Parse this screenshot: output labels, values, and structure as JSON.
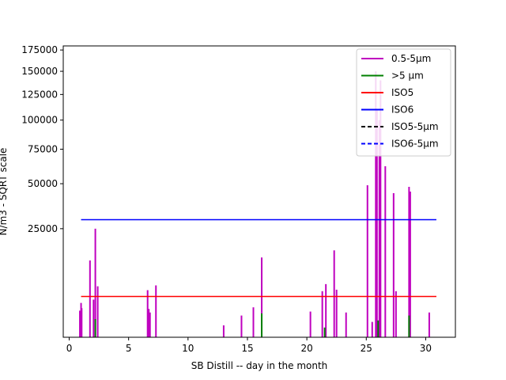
{
  "chart_data": {
    "type": "line",
    "xlabel": "SB Distill -- day in the month",
    "ylabel": "N/m3 - SQRT scale",
    "xlim": [
      -0.5,
      32.5
    ],
    "ylim": [
      0,
      180000
    ],
    "y_scale": "sqrt",
    "grid": false,
    "legend_placement": "top-right",
    "x_ticks": [
      0,
      5,
      10,
      15,
      20,
      25,
      30
    ],
    "x_tick_labels": [
      "0",
      "5",
      "10",
      "15",
      "20",
      "25",
      "30"
    ],
    "y_ticks": [
      25000,
      50000,
      75000,
      100000,
      125000,
      150000,
      175000
    ],
    "y_tick_labels": [
      "25000",
      "50000",
      "75000",
      "100000",
      "125000",
      "150000",
      "175000"
    ],
    "colors": {
      "particles_small": "#bf00bf",
      "particles_large": "#008000",
      "iso5": "#ff0000",
      "iso6": "#0000ff",
      "iso5_5um": "#000000",
      "iso6_5um": "#0000ff"
    },
    "series": [
      {
        "name": "0.5-5µm",
        "style": "solid",
        "spikes": [
          [
            0.9,
            1500
          ],
          [
            1.0,
            2500
          ],
          [
            1.05,
            1800
          ],
          [
            1.75,
            12500
          ],
          [
            2.05,
            3000
          ],
          [
            2.2,
            25000
          ],
          [
            2.4,
            5500
          ],
          [
            6.6,
            4700
          ],
          [
            6.7,
            1700
          ],
          [
            6.8,
            1300
          ],
          [
            7.3,
            5700
          ],
          [
            13.0,
            300
          ],
          [
            14.5,
            1000
          ],
          [
            15.5,
            1900
          ],
          [
            16.2,
            13500
          ],
          [
            20.3,
            1400
          ],
          [
            21.3,
            4500
          ],
          [
            21.6,
            6000
          ],
          [
            22.3,
            16000
          ],
          [
            22.5,
            4800
          ],
          [
            23.3,
            1300
          ],
          [
            25.1,
            49000
          ],
          [
            25.5,
            500
          ],
          [
            25.8,
            150000
          ],
          [
            25.9,
            110000
          ],
          [
            26.1,
            100000
          ],
          [
            26.2,
            140000
          ],
          [
            26.6,
            62000
          ],
          [
            27.3,
            44000
          ],
          [
            27.5,
            4500
          ],
          [
            28.6,
            48000
          ],
          [
            28.7,
            45000
          ],
          [
            30.3,
            1300
          ]
        ]
      },
      {
        "name": ">5 µm",
        "style": "solid",
        "spikes": [
          [
            2.2,
            700
          ],
          [
            16.2,
            1200
          ],
          [
            21.5,
            200
          ],
          [
            26.0,
            600
          ],
          [
            28.6,
            1000
          ]
        ]
      },
      {
        "name": "ISO5",
        "style": "solid",
        "x": [
          1,
          30.9
        ],
        "y": [
          3520,
          3520
        ]
      },
      {
        "name": "ISO6",
        "style": "solid",
        "x": [
          1,
          30.9
        ],
        "y": [
          29300,
          29300
        ]
      },
      {
        "name": "ISO5-5µm",
        "style": "dashed",
        "x": [],
        "y": []
      },
      {
        "name": "ISO6-5µm",
        "style": "dashed",
        "x": [],
        "y": []
      }
    ]
  }
}
